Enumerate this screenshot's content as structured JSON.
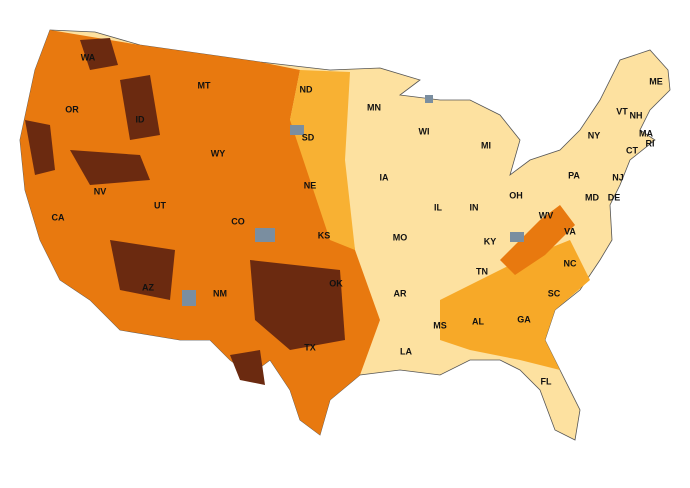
{
  "states": [
    "WA",
    "OR",
    "ID",
    "MT",
    "WY",
    "ND",
    "SD",
    "NE",
    "MN",
    "WI",
    "MI",
    "IA",
    "IL",
    "IN",
    "OH",
    "PA",
    "NY",
    "VT",
    "NH",
    "ME",
    "MA",
    "RI",
    "CT",
    "NJ",
    "DE",
    "MD",
    "WV",
    "VA",
    "KY",
    "TN",
    "NC",
    "SC",
    "GA",
    "AL",
    "MS",
    "AR",
    "LA",
    "FL",
    "TX",
    "OK",
    "KS",
    "MO",
    "CO",
    "UT",
    "NV",
    "CA",
    "AZ",
    "NM"
  ]
}
